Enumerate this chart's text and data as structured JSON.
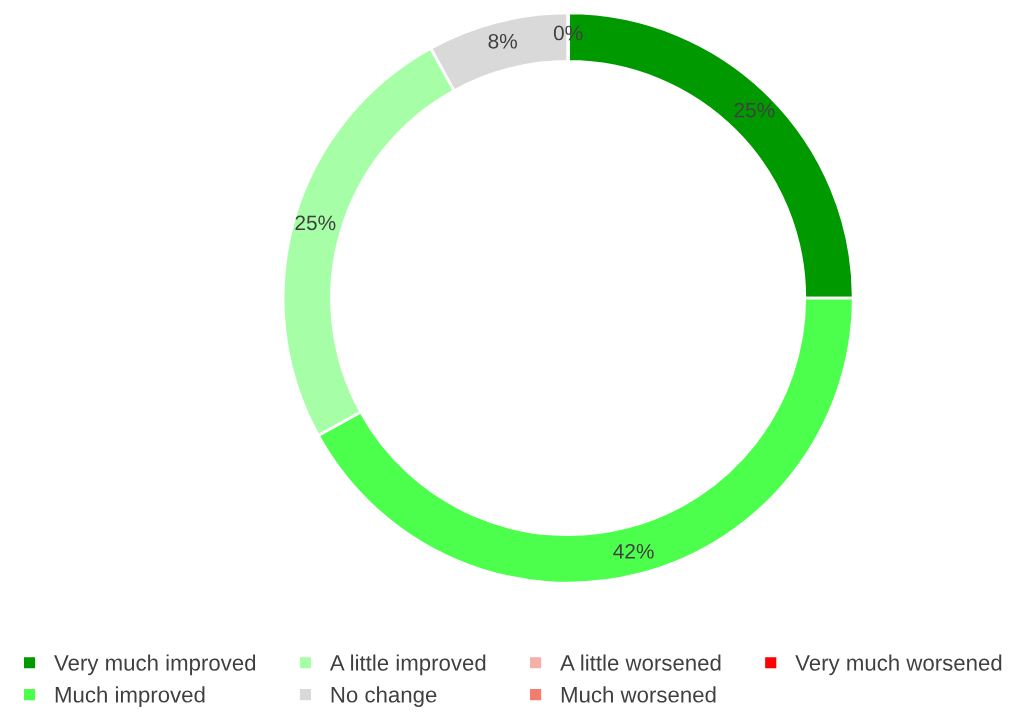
{
  "chart_data": {
    "type": "donut",
    "categories": [
      "Very much improved",
      "Much improved",
      "A little improved",
      "No change",
      "A little worsened",
      "Much worsened",
      "Very much worsened"
    ],
    "values": [
      25,
      42,
      25,
      8,
      0,
      0,
      0
    ],
    "value_labels": [
      "25%",
      "42%",
      "25%",
      "8%",
      "0%",
      null,
      null
    ],
    "colors": [
      "#009900",
      "#4dff4d",
      "#a6ffa6",
      "#d9d9d9",
      "#f4b0aa",
      "#f07e6e",
      "#ff0000"
    ],
    "legend": "bottom"
  }
}
